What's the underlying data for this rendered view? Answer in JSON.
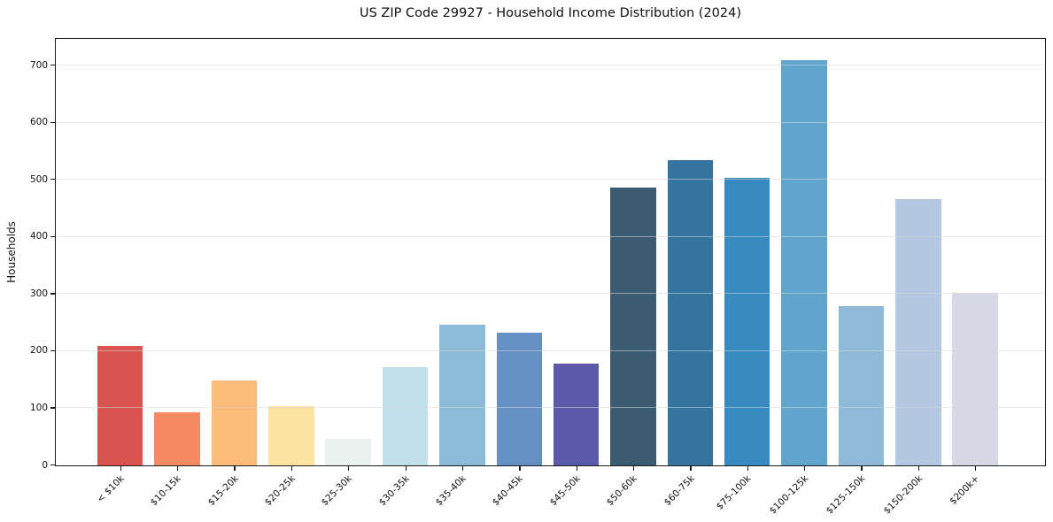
{
  "chart_data": {
    "type": "bar",
    "title": "US ZIP Code 29927 - Household Income Distribution (2024)",
    "xlabel": "",
    "ylabel": "Households",
    "categories": [
      "< $10k",
      "$10-15k",
      "$15-20k",
      "$20-25k",
      "$25-30k",
      "$30-35k",
      "$35-40k",
      "$40-45k",
      "$45-50k",
      "$50-60k",
      "$60-75k",
      "$75-100k",
      "$100-125k",
      "$125-150k",
      "$150-200k",
      "$200k+"
    ],
    "values": [
      209,
      93,
      148,
      104,
      46,
      172,
      246,
      233,
      178,
      486,
      535,
      504,
      709,
      279,
      466,
      302
    ],
    "bar_colors": [
      "#d9544e",
      "#f58a63",
      "#fbbb79",
      "#fde3a2",
      "#e9f2ef",
      "#c2e0ea",
      "#8cbbd9",
      "#6590c3",
      "#5b59a9",
      "#3b5c70",
      "#35749f",
      "#378bc1",
      "#61a5cd",
      "#8fb9d9",
      "#b4c8e1",
      "#d7d8e6"
    ],
    "ylim": [
      0,
      745
    ],
    "yticks": [
      0,
      100,
      200,
      300,
      400,
      500,
      600,
      700
    ],
    "grid": "y",
    "gridline_color": "#e9e9e9",
    "frame_color": "#1b1b1b",
    "legend": "none"
  }
}
